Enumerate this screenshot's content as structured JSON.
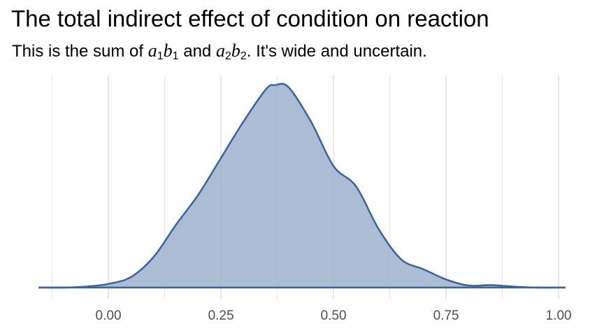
{
  "title": "The total indirect effect of condition on reaction",
  "subtitle": {
    "prefix": "This is the sum of ",
    "a": "a",
    "b": "b",
    "sub1": "1",
    "sub2": "2",
    "middle": " and ",
    "suffix": ". It's wide and uncertain."
  },
  "chart_data": {
    "type": "area",
    "subtype": "density",
    "title": "The total indirect effect of condition on reaction",
    "subtitle": "This is the sum of a1b1 and a2b2. It's wide and uncertain.",
    "xlabel": "",
    "ylabel": "",
    "xlim": [
      -0.16,
      1.02
    ],
    "ylim": [
      0,
      1.0
    ],
    "x_ticks": [
      0.0,
      0.25,
      0.5,
      0.75,
      1.0
    ],
    "x_tick_labels": [
      "0.00",
      "0.25",
      "0.50",
      "0.75",
      "1.00"
    ],
    "y_axis_shown": false,
    "grid": "vertical-only",
    "colors": {
      "fill": "#9cb0ce",
      "line": "#3a6399",
      "grid": "#e5e5e5"
    },
    "series": [
      {
        "x": [
          -0.155,
          -0.1,
          -0.05,
          0.0,
          0.05,
          0.1,
          0.15,
          0.2,
          0.25,
          0.3,
          0.35,
          0.37,
          0.4,
          0.45,
          0.5,
          0.55,
          0.6,
          0.65,
          0.7,
          0.75,
          0.8,
          0.85,
          0.9,
          0.95,
          1.015
        ],
        "y": [
          0.0,
          0.0,
          0.005,
          0.018,
          0.052,
          0.15,
          0.31,
          0.46,
          0.64,
          0.82,
          0.98,
          1.0,
          0.99,
          0.82,
          0.6,
          0.5,
          0.29,
          0.14,
          0.09,
          0.04,
          0.01,
          0.012,
          0.005,
          0.0,
          0.0
        ]
      }
    ]
  }
}
